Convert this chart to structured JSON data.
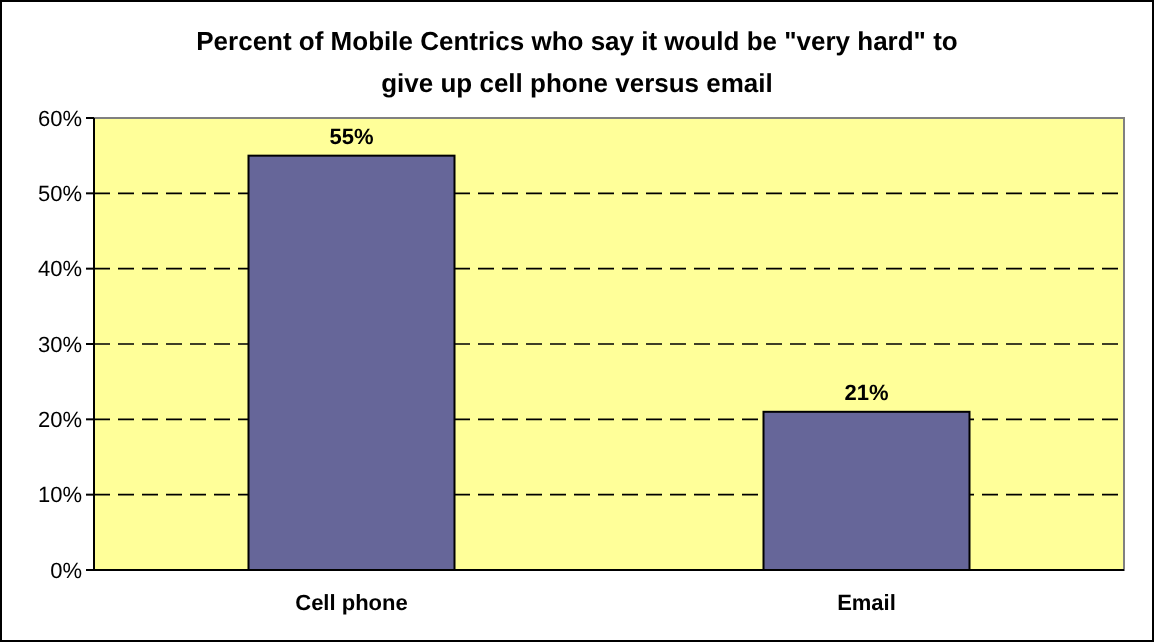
{
  "chart_data": {
    "type": "bar",
    "title": "Percent of Mobile Centrics who say it would be \"very hard\" to give up cell phone versus email",
    "categories": [
      "Cell phone",
      "Email"
    ],
    "values": [
      55,
      21
    ],
    "color": "#666699",
    "value_labels": [
      "55%",
      "21%"
    ],
    "ylim": [
      0,
      60
    ],
    "yticks": [
      {
        "value": 0,
        "label": "0%"
      },
      {
        "value": 10,
        "label": "10%"
      },
      {
        "value": 20,
        "label": "20%"
      },
      {
        "value": 30,
        "label": "30%"
      },
      {
        "value": 40,
        "label": "40%"
      },
      {
        "value": 50,
        "label": "50%"
      },
      {
        "value": 60,
        "label": "60%"
      }
    ],
    "grid": "y"
  }
}
